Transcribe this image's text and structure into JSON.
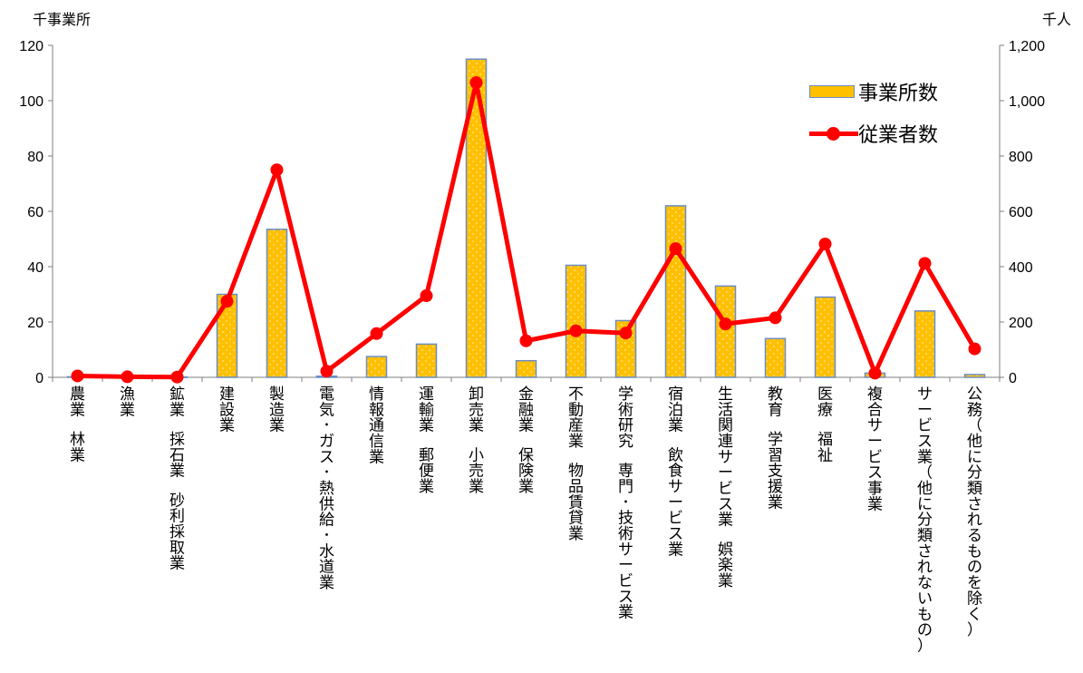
{
  "left_axis_unit": "千事業所",
  "right_axis_unit": "千人",
  "colors": {
    "bar_fill": "#ffc000",
    "bar_border": "#6b8dc4",
    "line": "#ff0000"
  },
  "chart_data": {
    "type": "bar",
    "categories": [
      "農業 林業",
      "漁業",
      "鉱業 採石業 砂利採取業",
      "建設業",
      "製造業",
      "電気･ガス･熱供給･水道業",
      "情報通信業",
      "運輸業 郵便業",
      "卸売業 小売業",
      "金融業 保険業",
      "不動産業 物品賃貸業",
      "学術研究 専門･技術サービス業",
      "宿泊業 飲食サービス業",
      "生活関連サービス業 娯楽業",
      "教育 学習支援業",
      "医療 福祉",
      "複合サービス事業",
      "サービス業（他に分類されないもの）",
      "公務（他に分類されるものを除く）"
    ],
    "series": [
      {
        "name": "事業所数",
        "type": "bar",
        "axis": "left",
        "values": [
          0.2,
          0.1,
          0.1,
          30,
          53.5,
          0.4,
          7.5,
          12,
          115,
          6,
          40.5,
          20.5,
          62,
          33,
          14,
          29,
          1.5,
          24,
          1
        ]
      },
      {
        "name": "従業者数",
        "type": "line",
        "axis": "right",
        "values": [
          5,
          2,
          1,
          275,
          750,
          22,
          158,
          295,
          1065,
          132,
          168,
          160,
          465,
          193,
          215,
          482,
          15,
          412,
          103
        ]
      }
    ],
    "left_axis": {
      "ylim": [
        0,
        120
      ],
      "ticks": [
        "0",
        "20",
        "40",
        "60",
        "80",
        "100",
        "120"
      ]
    },
    "right_axis": {
      "ylim": [
        0,
        1200
      ],
      "ticks": [
        "0",
        "200",
        "400",
        "600",
        "800",
        "1,000",
        "1,200"
      ]
    },
    "legend_position": "top-right",
    "grid": false
  }
}
